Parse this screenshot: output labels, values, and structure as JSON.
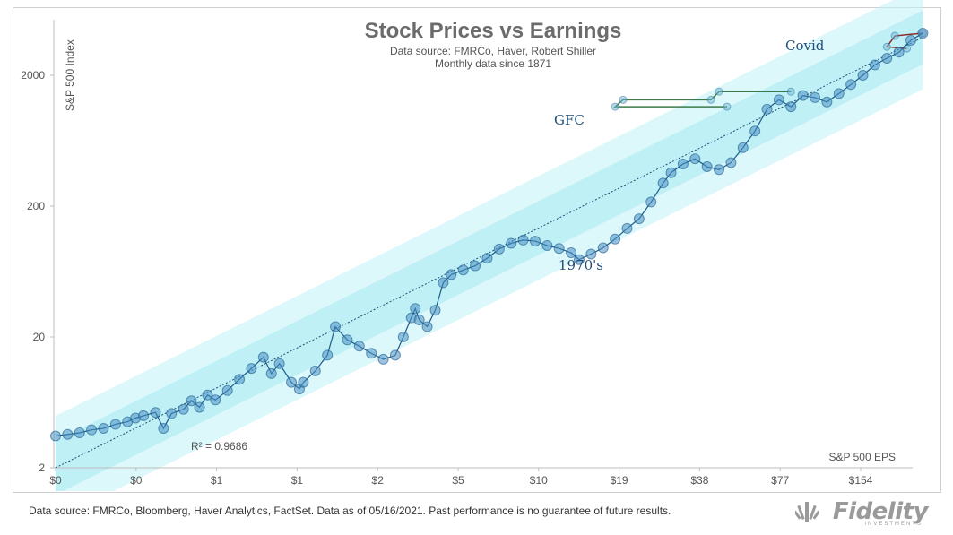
{
  "chart_data": {
    "type": "scatter",
    "title": "Stock Prices vs Earnings",
    "subtitle_lines": [
      "Data source: FMRCo, Haver, Robert Shiller",
      "Monthly  data since 1871"
    ],
    "ylabel": "S&P 500 Index",
    "xlabel": "S&P 500 EPS",
    "y_scale": "log",
    "y_ticks": [
      2,
      20,
      200,
      2000
    ],
    "x_tick_labels": [
      "$0",
      "$0",
      "$1",
      "$1",
      "$2",
      "$5",
      "$10",
      "$19",
      "$38",
      "$77",
      "$154"
    ],
    "r_squared_label": "R² = 0.9686",
    "annotations": [
      "Covid",
      "GFC",
      "1970's"
    ],
    "series": [
      {
        "values": [
          [
            0,
            3.5
          ],
          [
            0.3,
            3.6
          ],
          [
            0.6,
            3.7
          ],
          [
            0.9,
            3.9
          ],
          [
            1.2,
            4.0
          ],
          [
            1.5,
            4.3
          ],
          [
            1.8,
            4.5
          ],
          [
            2.0,
            4.8
          ],
          [
            2.2,
            5.0
          ],
          [
            2.5,
            5.3
          ],
          [
            2.7,
            4.0
          ],
          [
            2.9,
            5.2
          ],
          [
            3.2,
            5.6
          ],
          [
            3.4,
            6.5
          ],
          [
            3.6,
            5.8
          ],
          [
            3.8,
            7.2
          ],
          [
            4.0,
            6.6
          ],
          [
            4.3,
            7.8
          ],
          [
            4.6,
            9.5
          ],
          [
            4.9,
            11.5
          ],
          [
            5.2,
            14.0
          ],
          [
            5.4,
            10.5
          ],
          [
            5.6,
            12.5
          ],
          [
            5.9,
            9.0
          ],
          [
            6.1,
            8.0
          ],
          [
            6.2,
            9.0
          ],
          [
            6.5,
            11.0
          ],
          [
            6.8,
            14.5
          ],
          [
            7.0,
            24.0
          ],
          [
            7.3,
            19.0
          ],
          [
            7.6,
            17.0
          ],
          [
            7.9,
            15.0
          ],
          [
            8.2,
            13.5
          ],
          [
            8.5,
            14.5
          ],
          [
            8.7,
            20.0
          ],
          [
            8.9,
            28.0
          ],
          [
            9.0,
            33.0
          ],
          [
            9.1,
            27.0
          ],
          [
            9.3,
            24.0
          ],
          [
            9.5,
            32.0
          ],
          [
            9.7,
            52.0
          ],
          [
            9.9,
            60.0
          ],
          [
            10.2,
            65.0
          ],
          [
            10.5,
            70.0
          ],
          [
            10.8,
            80.0
          ],
          [
            11.1,
            94.0
          ],
          [
            11.4,
            104.0
          ],
          [
            11.7,
            110.0
          ],
          [
            12.0,
            108.0
          ],
          [
            12.3,
            100.0
          ],
          [
            12.6,
            95.0
          ],
          [
            12.9,
            88.0
          ],
          [
            13.1,
            78.0
          ],
          [
            13.4,
            86.0
          ],
          [
            13.7,
            96.0
          ],
          [
            14.0,
            112.0
          ],
          [
            14.3,
            135.0
          ],
          [
            14.6,
            160.0
          ],
          [
            14.9,
            215.0
          ],
          [
            15.2,
            300.0
          ],
          [
            15.4,
            360.0
          ],
          [
            15.7,
            420.0
          ],
          [
            16.0,
            460.0
          ],
          [
            16.3,
            400.0
          ],
          [
            16.6,
            380.0
          ],
          [
            16.9,
            430.0
          ],
          [
            17.2,
            560.0
          ],
          [
            17.5,
            750.0
          ],
          [
            17.8,
            1100.0
          ],
          [
            18.1,
            1300.0
          ],
          [
            18.4,
            1150.0
          ],
          [
            18.7,
            1400.0
          ],
          [
            19.0,
            1350.0
          ],
          [
            19.3,
            1250.0
          ],
          [
            19.6,
            1450.0
          ],
          [
            19.9,
            1700.0
          ],
          [
            20.2,
            2000.0
          ],
          [
            20.5,
            2400.0
          ],
          [
            20.8,
            2700.0
          ],
          [
            21.1,
            3000.0
          ],
          [
            21.4,
            3700.0
          ],
          [
            21.7,
            4200.0
          ]
        ]
      }
    ],
    "trendline": {
      "x": [
        0,
        21.7
      ],
      "y": [
        2,
        3900
      ]
    },
    "gfc_loop": [
      [
        18.4,
        1500
      ],
      [
        16.6,
        1500
      ],
      [
        16.4,
        1300
      ],
      [
        14.2,
        1300
      ],
      [
        14.0,
        1150
      ],
      [
        16.8,
        1150
      ]
    ],
    "covid_loop": [
      [
        21.7,
        4200
      ],
      [
        21.0,
        4000
      ],
      [
        20.8,
        3300
      ],
      [
        21.3,
        3200
      ]
    ]
  },
  "footer": {
    "text": "Data source: FMRCo, Bloomberg, Haver Analytics, FactSet. Data as of 05/16/2021. Past performance is no guarantee of future results."
  },
  "logo": {
    "name": "Fidelity",
    "sub": "INVESTMENTS"
  }
}
